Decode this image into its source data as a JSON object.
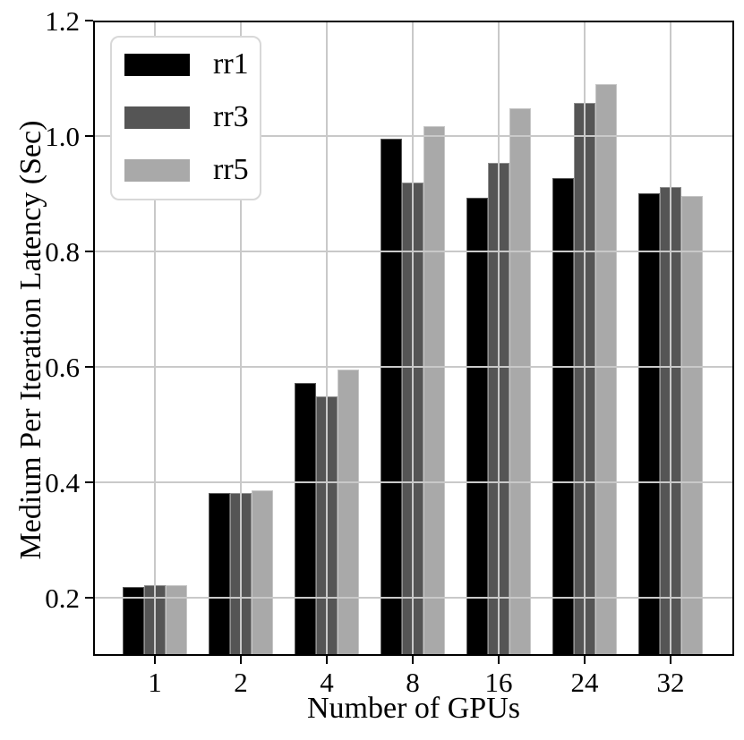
{
  "chart_data": {
    "type": "bar",
    "title": "",
    "xlabel": "Number of GPUs",
    "ylabel": "Medium Per Iteration Latency (Sec)",
    "categories": [
      "1",
      "2",
      "4",
      "8",
      "16",
      "24",
      "32"
    ],
    "series": [
      {
        "name": "rr1",
        "color": "#000000",
        "values": [
          0.22,
          0.382,
          0.572,
          0.995,
          0.893,
          0.927,
          0.901
        ]
      },
      {
        "name": "rr3",
        "color": "#555555",
        "values": [
          0.222,
          0.382,
          0.55,
          0.92,
          0.953,
          1.058,
          0.912
        ]
      },
      {
        "name": "rr5",
        "color": "#a9a9a9",
        "values": [
          0.222,
          0.386,
          0.596,
          1.017,
          1.048,
          1.09,
          0.897
        ]
      }
    ],
    "ylim": [
      0.1,
      1.2
    ],
    "yticks": [
      0.2,
      0.4,
      0.6,
      0.8,
      1.0,
      1.2
    ],
    "grid": true,
    "grid_on_top": true,
    "legend_position": "upper left"
  },
  "colors": {
    "background": "#ffffff",
    "grid": "#c9c9c9",
    "spine": "#000000",
    "tick_text": "#000000"
  }
}
